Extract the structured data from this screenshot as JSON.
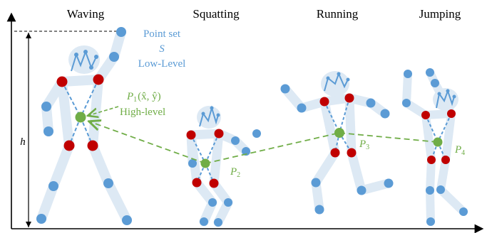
{
  "poses": [
    {
      "name": "Waving"
    },
    {
      "name": "Squatting"
    },
    {
      "name": "Running"
    },
    {
      "name": "Jumping"
    }
  ],
  "annotations": {
    "point_set_line1": "Point set",
    "point_set_symbol": "S",
    "low_level": "Low-Level",
    "p1_label": "P",
    "p1_sub": "1",
    "p1_args": "(x̂, ŷ)",
    "high_level": "High-level",
    "p2_label": "P",
    "p2_sub": "2",
    "p3_label": "P",
    "p3_sub": "3",
    "p4_label": "P",
    "p4_sub": "4",
    "height_symbol": "h"
  },
  "colors": {
    "limb": "#dde9f4",
    "keypoint": "#5b9bd5",
    "hip_shoulder": "#c00000",
    "center": "#70ad47",
    "annotation_blue": "#5b9bd5",
    "annotation_green": "#70ad47",
    "axis": "#000000"
  }
}
